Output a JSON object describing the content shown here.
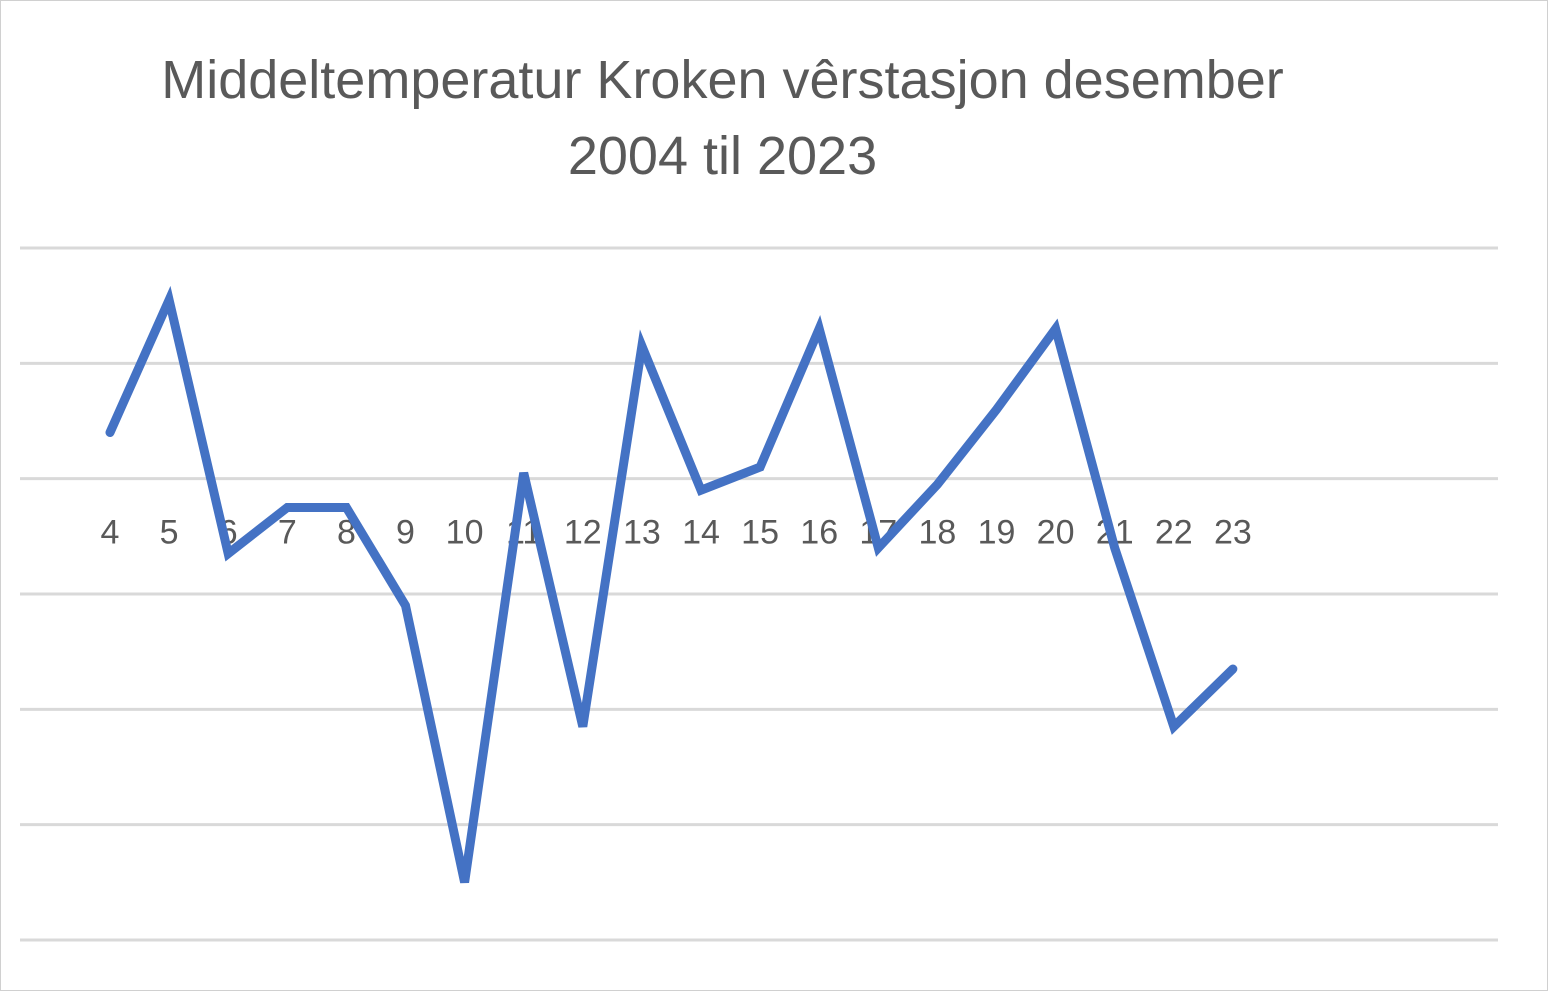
{
  "chart_data": {
    "type": "line",
    "title": "Middeltemperatur Kroken vêrstasjon desember 2004 til 2023",
    "title_lines": [
      "Middeltemperatur Kroken vêrstasjon desember",
      "2004 til 2023"
    ],
    "categories": [
      "4",
      "5",
      "6",
      "7",
      "8",
      "9",
      "10",
      "11",
      "12",
      "13",
      "14",
      "15",
      "16",
      "17",
      "18",
      "19",
      "20",
      "21",
      "22",
      "23"
    ],
    "series": [
      {
        "values": [
          0.8,
          3.1,
          -1.3,
          -0.5,
          -0.5,
          -2.2,
          -7.0,
          0.1,
          -4.3,
          2.3,
          -0.2,
          0.2,
          2.6,
          -1.2,
          -0.1,
          1.2,
          2.6,
          -1.2,
          -4.3,
          -3.3
        ],
        "color": "#4472C4"
      }
    ],
    "ylim": [
      -8,
      4
    ],
    "gridlines": [
      4,
      2,
      0,
      -2,
      -4,
      -6,
      -8
    ],
    "grid": true,
    "legend": "none",
    "xlabel": "",
    "ylabel": ""
  }
}
